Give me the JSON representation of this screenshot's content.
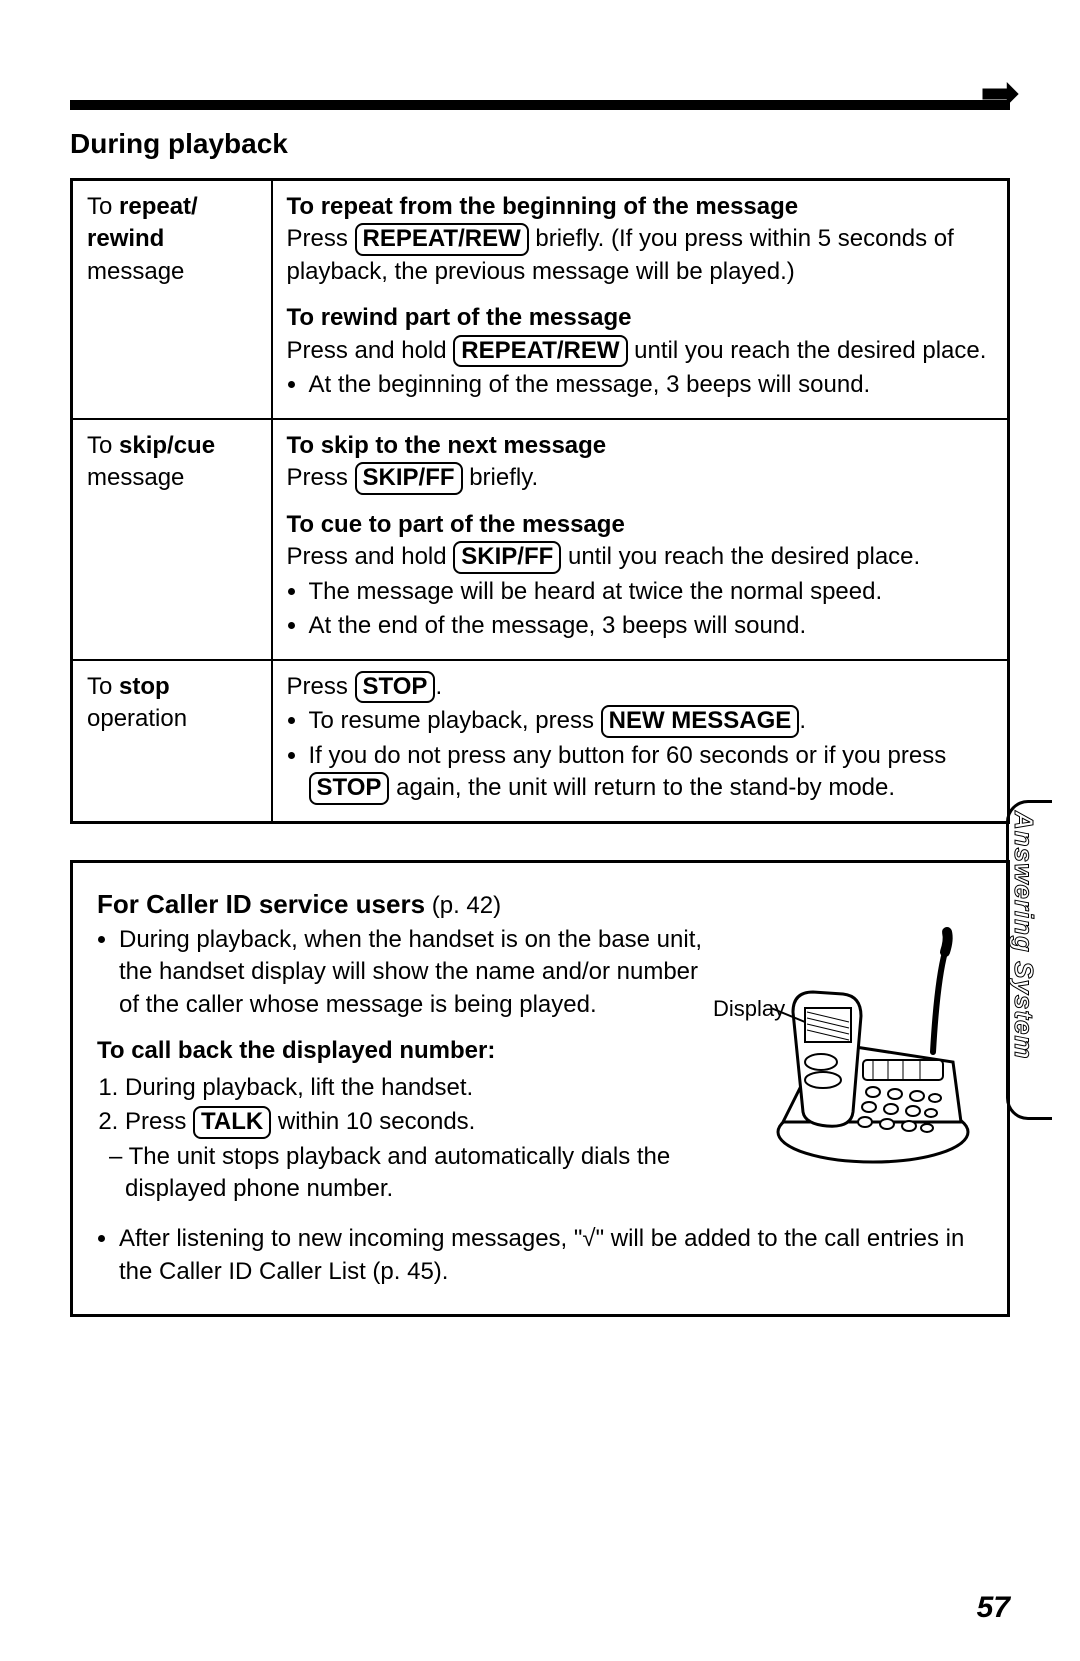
{
  "section_title": "During playback",
  "side_tab": "Answering System",
  "page_number": "57",
  "table": {
    "rows": [
      {
        "left_html": "To <span class='b'>repeat/<br>rewind</span><br>message",
        "right_blocks": [
          {
            "heading": "To repeat from the beginning of the message",
            "body_html": "Press <span class='btn'>REPEAT/REW</span> briefly. (If you press within 5 seconds of playback, the previous message will be played.)"
          },
          {
            "heading": "To rewind part of the message",
            "body_html": "Press and hold <span class='btn'>REPEAT/REW</span> until you reach the desired place.",
            "bullets": [
              "At the beginning of the message, 3 beeps will sound."
            ]
          }
        ]
      },
      {
        "left_html": "To <span class='b'>skip/cue</span><br>message",
        "right_blocks": [
          {
            "heading": "To skip to the next message",
            "body_html": "Press <span class='btn'>SKIP/FF</span> briefly."
          },
          {
            "heading": "To cue to part of the message",
            "body_html": "Press and hold <span class='btn'>SKIP/FF</span> until you reach the desired place.",
            "bullets": [
              "The message will be heard at twice the normal speed.",
              "At the end of the message, 3 beeps will sound."
            ]
          }
        ]
      },
      {
        "left_html": "To <span class='b'>stop</span><br>operation",
        "right_blocks": [
          {
            "body_html": "Press <span class='btn'>STOP</span>.",
            "bullets_html": [
              "To resume playback, press <span class='btn'>NEW MESSAGE</span>.",
              "If you do not press any button for 60 seconds or if you press <span class='btn'>STOP</span> again, the unit will return to the stand-by mode."
            ]
          }
        ]
      }
    ]
  },
  "caller": {
    "title": "For Caller ID service users",
    "title_ref": "(p. 42)",
    "intro_bullet": "During playback, when the handset is on the base unit, the handset display will show the name and/or number of the caller whose message is being played.",
    "display_label": "Display",
    "callback_heading": "To call back the displayed number:",
    "steps_html": [
      "During playback, lift the handset.",
      "Press <span class='btn'>TALK</span> within 10 seconds."
    ],
    "step2_sub": "– The unit stops playback and automatically dials the displayed phone number.",
    "footer_bullet": "After listening to new incoming messages, \"√\" will be added to the call entries in the Caller ID Caller List (p. 45)."
  },
  "colors": {
    "text": "#000000",
    "bg": "#ffffff"
  }
}
